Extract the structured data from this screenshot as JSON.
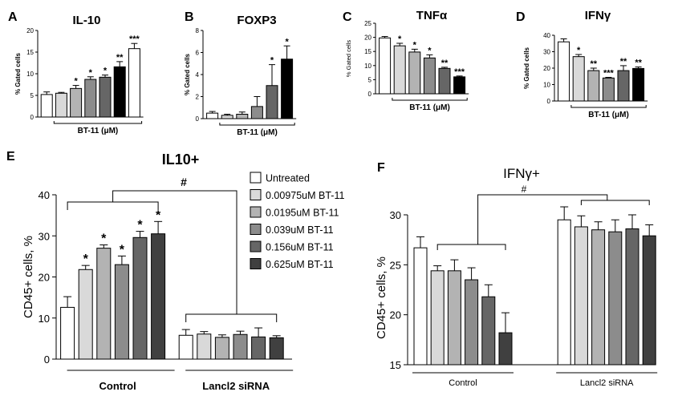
{
  "colors": {
    "untreated": "#ffffff",
    "d1": "#d9d9d9",
    "d2": "#b3b3b3",
    "d3": "#8c8c8c",
    "d4": "#666666",
    "d5": "#404040",
    "black": "#000000",
    "stroke": "#000000"
  },
  "legend": {
    "items": [
      {
        "label": "Untreated",
        "color": "#ffffff"
      },
      {
        "label": "0.00975uM BT-11",
        "color": "#d9d9d9"
      },
      {
        "label": "0.0195uM BT-11",
        "color": "#b3b3b3"
      },
      {
        "label": "0.039uM BT-11",
        "color": "#8c8c8c"
      },
      {
        "label": "0.156uM BT-11",
        "color": "#666666"
      },
      {
        "label": "0.625uM BT-11",
        "color": "#404040"
      }
    ]
  },
  "chart_data": [
    {
      "id": "A",
      "panel_label": "A",
      "type": "bar",
      "title": "IL-10",
      "ylabel": "% Gated cells",
      "xlabel": "BT-11 (μM)",
      "ylim": [
        0,
        20
      ],
      "yticks": [
        0,
        5,
        10,
        15,
        20
      ],
      "values": [
        5.2,
        5.5,
        6.6,
        8.7,
        9.2,
        11.6,
        15.8
      ],
      "errors": [
        0.6,
        0.2,
        0.7,
        0.6,
        0.5,
        1.2,
        1.2
      ],
      "colors": [
        "#ffffff",
        "#d9d9d9",
        "#b3b3b3",
        "#8c8c8c",
        "#666666",
        "#000000",
        "#ffffff"
      ],
      "stars": [
        "",
        "",
        "*",
        "*",
        "*",
        "**",
        "***"
      ]
    },
    {
      "id": "B",
      "panel_label": "B",
      "type": "bar",
      "title": "FOXP3",
      "ylabel": "% Gated cells",
      "xlabel": "BT-11 (μM)",
      "ylim": [
        0,
        8
      ],
      "yticks": [
        0,
        2,
        4,
        6,
        8
      ],
      "values": [
        0.5,
        0.3,
        0.4,
        1.1,
        3.0,
        5.4
      ],
      "errors": [
        0.15,
        0.1,
        0.2,
        0.9,
        1.9,
        1.2
      ],
      "colors": [
        "#ffffff",
        "#d9d9d9",
        "#b3b3b3",
        "#8c8c8c",
        "#666666",
        "#000000"
      ],
      "stars": [
        "",
        "",
        "",
        "",
        "*",
        "*"
      ]
    },
    {
      "id": "C",
      "panel_label": "C",
      "type": "bar",
      "title": "TNFα",
      "ylabel": "% Gated cells",
      "xlabel": "BT-11 (μM)",
      "ylim": [
        0,
        25
      ],
      "yticks": [
        0,
        5,
        10,
        15,
        20,
        25
      ],
      "values": [
        19.8,
        17.0,
        14.8,
        12.7,
        9.0,
        6.0
      ],
      "errors": [
        0.5,
        0.9,
        1.0,
        1.1,
        0.4,
        0.3
      ],
      "colors": [
        "#ffffff",
        "#d9d9d9",
        "#b3b3b3",
        "#8c8c8c",
        "#666666",
        "#000000"
      ],
      "stars": [
        "",
        "*",
        "*",
        "*",
        "**",
        "***"
      ]
    },
    {
      "id": "D",
      "panel_label": "D",
      "type": "bar",
      "title": "IFNγ",
      "ylabel": "% Gated cells",
      "xlabel": "BT-11 (μM)",
      "ylim": [
        0,
        40
      ],
      "yticks": [
        0,
        10,
        20,
        30,
        40
      ],
      "values": [
        36.0,
        27.0,
        18.5,
        14.0,
        18.5,
        19.8
      ],
      "errors": [
        1.8,
        1.3,
        1.5,
        0.4,
        3.0,
        0.9
      ],
      "colors": [
        "#ffffff",
        "#d9d9d9",
        "#b3b3b3",
        "#8c8c8c",
        "#666666",
        "#000000"
      ],
      "stars": [
        "",
        "*",
        "**",
        "***",
        "**",
        "**"
      ]
    },
    {
      "id": "E",
      "panel_label": "E",
      "type": "bar",
      "title": "IL10+",
      "ylabel": "CD45+ cells, %",
      "ylim": [
        0,
        40
      ],
      "yticks": [
        0,
        10,
        20,
        30,
        40
      ],
      "groups": [
        "Control",
        "Lancl2 siRNA"
      ],
      "series": [
        {
          "values": [
            12.6,
            21.8,
            27.0,
            23.0,
            29.6,
            30.5
          ],
          "errors": [
            2.6,
            1.0,
            0.8,
            2.1,
            1.5,
            3.0
          ]
        },
        {
          "values": [
            5.8,
            6.1,
            5.3,
            6.0,
            5.4,
            5.2
          ],
          "errors": [
            1.4,
            0.6,
            0.6,
            0.8,
            2.2,
            0.5
          ]
        }
      ],
      "stars": [
        "",
        "*",
        "*",
        "*",
        "*",
        "*"
      ],
      "significance": "#"
    },
    {
      "id": "F",
      "panel_label": "F",
      "type": "bar",
      "title": "IFNγ+",
      "ylabel": "CD45+ cells, %",
      "ylim": [
        15,
        30
      ],
      "yticks": [
        15,
        20,
        25,
        30
      ],
      "groups": [
        "Control",
        "Lancl2 siRNA"
      ],
      "series": [
        {
          "values": [
            26.7,
            24.4,
            24.4,
            23.5,
            21.8,
            18.2
          ],
          "errors": [
            1.1,
            0.5,
            1.1,
            1.2,
            1.2,
            2.0
          ]
        },
        {
          "values": [
            29.5,
            28.8,
            28.5,
            28.3,
            28.6,
            27.9
          ],
          "errors": [
            1.3,
            1.1,
            0.8,
            1.2,
            1.4,
            1.1
          ]
        }
      ],
      "significance": "#"
    }
  ]
}
